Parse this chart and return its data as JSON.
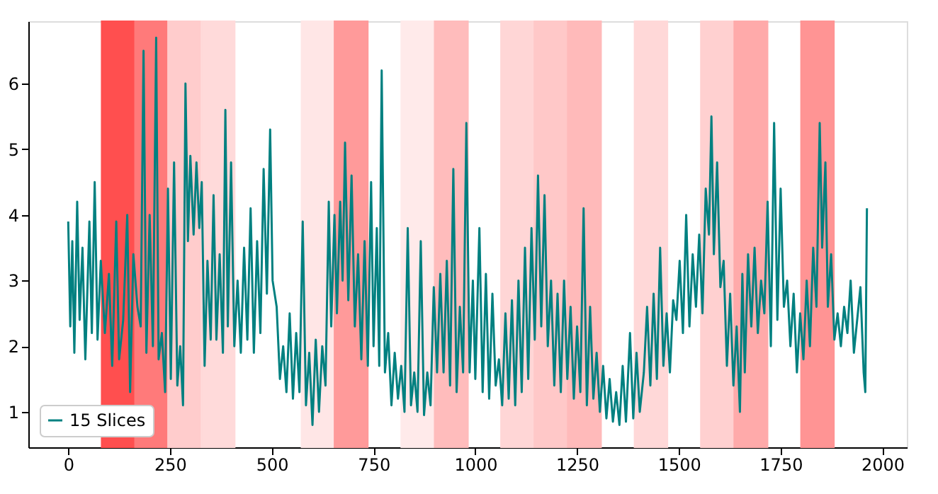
{
  "chart_data": {
    "type": "line",
    "x": [
      0,
      5,
      10,
      15,
      22,
      28,
      35,
      42,
      52,
      58,
      65,
      72,
      80,
      90,
      100,
      108,
      118,
      125,
      135,
      145,
      152,
      160,
      170,
      178,
      185,
      192,
      200,
      208,
      216,
      222,
      230,
      238,
      245,
      252,
      260,
      268,
      275,
      282,
      288,
      294,
      300,
      308,
      315,
      322,
      328,
      335,
      342,
      350,
      357,
      364,
      372,
      380,
      386,
      392,
      400,
      408,
      416,
      424,
      432,
      440,
      448,
      456,
      464,
      472,
      480,
      488,
      496,
      502,
      512,
      520,
      528,
      536,
      544,
      552,
      560,
      568,
      576,
      584,
      592,
      600,
      608,
      616,
      624,
      632,
      640,
      646,
      654,
      660,
      668,
      674,
      680,
      688,
      696,
      704,
      712,
      720,
      728,
      736,
      744,
      750,
      758,
      764,
      770,
      778,
      786,
      794,
      802,
      810,
      818,
      826,
      834,
      842,
      850,
      858,
      866,
      874,
      882,
      890,
      898,
      906,
      914,
      922,
      930,
      938,
      946,
      954,
      962,
      970,
      978,
      986,
      994,
      1000,
      1010,
      1018,
      1026,
      1034,
      1042,
      1050,
      1058,
      1066,
      1074,
      1082,
      1090,
      1098,
      1106,
      1114,
      1122,
      1130,
      1138,
      1146,
      1154,
      1162,
      1170,
      1178,
      1186,
      1194,
      1202,
      1210,
      1218,
      1226,
      1234,
      1242,
      1250,
      1258,
      1266,
      1274,
      1282,
      1290,
      1298,
      1306,
      1314,
      1322,
      1330,
      1338,
      1346,
      1354,
      1362,
      1370,
      1380,
      1388,
      1396,
      1404,
      1414,
      1422,
      1430,
      1438,
      1446,
      1454,
      1462,
      1470,
      1478,
      1486,
      1494,
      1502,
      1510,
      1518,
      1526,
      1534,
      1542,
      1550,
      1558,
      1566,
      1574,
      1580,
      1586,
      1594,
      1602,
      1610,
      1618,
      1626,
      1634,
      1642,
      1650,
      1656,
      1662,
      1670,
      1678,
      1686,
      1694,
      1702,
      1710,
      1718,
      1726,
      1734,
      1742,
      1750,
      1758,
      1766,
      1774,
      1782,
      1790,
      1798,
      1806,
      1814,
      1822,
      1830,
      1838,
      1846,
      1852,
      1860,
      1866,
      1874,
      1882,
      1890,
      1898,
      1906,
      1914,
      1922,
      1930,
      1938,
      1946,
      1954,
      1958,
      1962
    ],
    "series": [
      {
        "name": "15 Slices",
        "color": "#008080",
        "values": [
          3.9,
          2.3,
          3.6,
          1.9,
          4.2,
          2.4,
          3.5,
          1.8,
          3.9,
          2.2,
          4.5,
          2.1,
          3.3,
          2.2,
          3.1,
          1.7,
          3.9,
          1.8,
          2.4,
          4.0,
          1.3,
          3.4,
          2.6,
          2.3,
          6.5,
          1.9,
          4.0,
          2.0,
          6.7,
          1.8,
          2.2,
          1.3,
          4.4,
          1.5,
          4.8,
          1.4,
          2.0,
          1.1,
          6.0,
          3.6,
          4.9,
          3.7,
          4.8,
          3.8,
          4.5,
          1.7,
          3.3,
          2.1,
          4.3,
          2.1,
          3.4,
          1.9,
          5.6,
          2.3,
          4.8,
          2.0,
          3.0,
          1.9,
          3.5,
          2.1,
          4.1,
          1.9,
          3.6,
          2.2,
          4.7,
          2.8,
          5.3,
          3.0,
          2.6,
          1.5,
          2.0,
          1.3,
          2.5,
          1.2,
          2.2,
          1.3,
          3.9,
          1.1,
          1.9,
          0.8,
          2.1,
          1.0,
          2.0,
          1.4,
          4.2,
          2.3,
          4.0,
          2.5,
          4.2,
          3.0,
          5.1,
          2.7,
          4.6,
          2.3,
          3.4,
          1.8,
          3.6,
          1.7,
          4.5,
          2.0,
          3.8,
          1.7,
          6.2,
          1.6,
          2.2,
          1.1,
          1.9,
          1.2,
          1.7,
          1.0,
          3.8,
          1.1,
          1.6,
          1.0,
          3.6,
          0.95,
          1.6,
          1.1,
          2.9,
          1.6,
          3.1,
          1.6,
          3.3,
          1.4,
          4.7,
          1.3,
          2.6,
          1.6,
          5.4,
          1.6,
          3.0,
          1.5,
          3.8,
          1.3,
          3.1,
          1.2,
          2.8,
          1.4,
          1.8,
          1.1,
          2.5,
          1.2,
          2.7,
          1.1,
          3.0,
          1.3,
          3.5,
          1.5,
          3.8,
          2.1,
          4.6,
          2.3,
          4.3,
          2.0,
          3.0,
          1.4,
          2.8,
          1.3,
          3.0,
          1.5,
          2.6,
          1.2,
          2.3,
          1.3,
          4.1,
          1.1,
          2.6,
          1.2,
          1.9,
          1.0,
          1.7,
          0.9,
          1.5,
          0.85,
          1.3,
          0.8,
          1.7,
          0.85,
          2.2,
          0.9,
          1.9,
          1.0,
          1.6,
          2.6,
          1.4,
          2.8,
          1.5,
          3.5,
          1.7,
          2.5,
          1.6,
          2.7,
          2.4,
          3.3,
          2.2,
          4.0,
          2.3,
          3.4,
          2.6,
          3.7,
          2.5,
          4.4,
          3.7,
          5.5,
          3.4,
          4.8,
          2.9,
          3.3,
          1.7,
          2.8,
          1.4,
          2.3,
          1.0,
          3.1,
          1.6,
          3.4,
          2.3,
          3.5,
          2.2,
          3.0,
          2.5,
          4.2,
          2.0,
          5.4,
          2.4,
          4.4,
          2.6,
          3.0,
          2.0,
          2.8,
          1.6,
          2.5,
          1.8,
          3.0,
          2.0,
          3.5,
          2.6,
          5.4,
          3.5,
          4.8,
          2.6,
          3.4,
          2.1,
          2.5,
          2.0,
          2.6,
          2.2,
          3.0,
          1.9,
          2.4,
          2.9,
          1.6,
          1.3,
          4.1
        ]
      }
    ],
    "bands": [
      {
        "axis": "x",
        "from": 82,
        "to": 164,
        "color": "#ff4f4f"
      },
      {
        "axis": "x",
        "from": 164,
        "to": 245,
        "color": "#ff7a7a"
      },
      {
        "axis": "x",
        "from": 245,
        "to": 327,
        "color": "#ffcccc"
      },
      {
        "axis": "x",
        "from": 327,
        "to": 409,
        "color": "#ffdada"
      },
      {
        "axis": "x",
        "from": 573,
        "to": 654,
        "color": "#ffe6e6"
      },
      {
        "axis": "x",
        "from": 654,
        "to": 736,
        "color": "#ff9a9a"
      },
      {
        "axis": "x",
        "from": 818,
        "to": 900,
        "color": "#ffeaea"
      },
      {
        "axis": "x",
        "from": 900,
        "to": 982,
        "color": "#ffbcbc"
      },
      {
        "axis": "x",
        "from": 1063,
        "to": 1145,
        "color": "#ffd6d6"
      },
      {
        "axis": "x",
        "from": 1145,
        "to": 1227,
        "color": "#ffc8c8"
      },
      {
        "axis": "x",
        "from": 1227,
        "to": 1309,
        "color": "#ffbaba"
      },
      {
        "axis": "x",
        "from": 1391,
        "to": 1472,
        "color": "#ffd8d8"
      },
      {
        "axis": "x",
        "from": 1554,
        "to": 1636,
        "color": "#ffd0d0"
      },
      {
        "axis": "x",
        "from": 1636,
        "to": 1718,
        "color": "#ffaaaa"
      },
      {
        "axis": "x",
        "from": 1800,
        "to": 1881,
        "color": "#ff9494"
      }
    ],
    "xlim": [
      -98,
      2060
    ],
    "xticks": [
      0,
      250,
      500,
      750,
      1000,
      1250,
      1500,
      1750,
      2000
    ],
    "ylim": [
      0.46,
      6.95
    ],
    "yticks": [
      1,
      2,
      3,
      4,
      5,
      6
    ],
    "legend": "bottom left",
    "grid": false
  }
}
